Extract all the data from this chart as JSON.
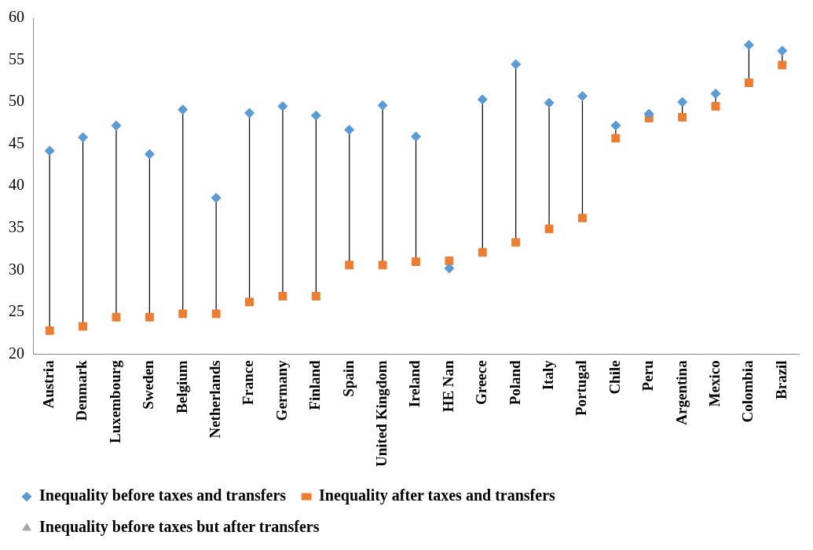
{
  "chart_data": {
    "type": "scatter",
    "categories": [
      "Austria",
      "Denmark",
      "Luxembourg",
      "Sweden",
      "Belgium",
      "Netherlands",
      "France",
      "Germany",
      "Finland",
      "Spain",
      "United Kingdom",
      "Ireland",
      "HE Nan",
      "Greece",
      "Poland",
      "Italy",
      "Portugal",
      "Chile",
      "Peru",
      "Argentina",
      "Mexico",
      "Colombia",
      "Brazil"
    ],
    "series": [
      {
        "name": "Inequality before taxes and transfers",
        "color": "#5b9bd5",
        "marker": "diamond",
        "values": [
          44.2,
          45.8,
          47.2,
          43.8,
          49.1,
          38.6,
          48.7,
          49.5,
          48.4,
          46.7,
          49.6,
          45.9,
          30.2,
          50.3,
          54.5,
          49.9,
          50.7,
          47.2,
          48.6,
          50.0,
          51.0,
          56.8,
          56.1
        ]
      },
      {
        "name": "Inequality after taxes and transfers",
        "color": "#ed7d31",
        "marker": "square",
        "values": [
          22.8,
          23.3,
          24.4,
          24.4,
          24.8,
          24.8,
          26.2,
          26.9,
          26.9,
          30.6,
          30.6,
          31.0,
          31.1,
          32.1,
          33.3,
          34.9,
          36.2,
          45.7,
          48.1,
          48.2,
          49.5,
          52.3,
          54.4
        ]
      },
      {
        "name": "Inequality before taxes but after transfers",
        "color": "#a5a5a5",
        "marker": "triangle",
        "values": [
          null,
          null,
          null,
          null,
          null,
          null,
          null,
          null,
          null,
          null,
          null,
          null,
          null,
          null,
          null,
          null,
          null,
          null,
          null,
          null,
          null,
          null,
          null
        ]
      }
    ],
    "ylim": [
      20,
      60
    ],
    "yticks": [
      20,
      25,
      30,
      35,
      40,
      45,
      50,
      55,
      60
    ],
    "grid": false,
    "legend": "bottom"
  }
}
